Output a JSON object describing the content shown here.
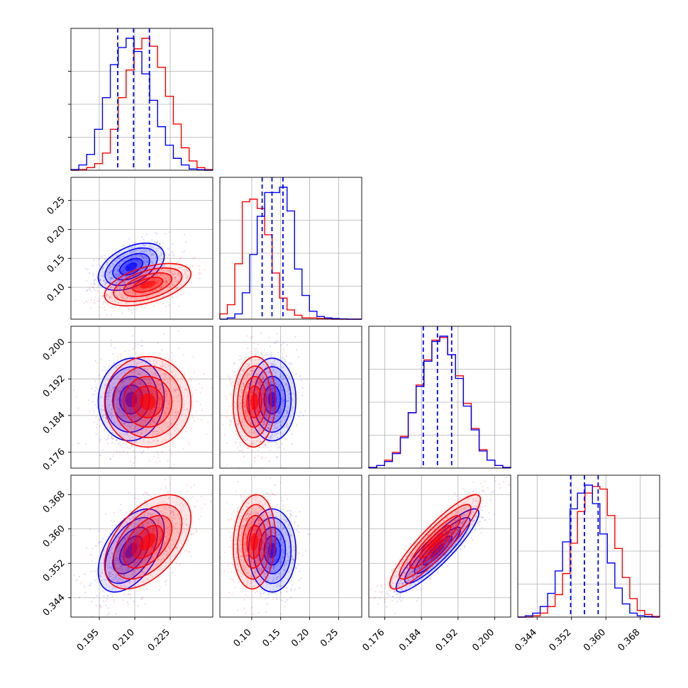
{
  "chart_data": {
    "type": "corner",
    "parameters": 4,
    "grid": true,
    "series": [
      {
        "color": "#0000ff"
      },
      {
        "color": "#ff0000"
      }
    ],
    "colors": {
      "blue": "#0000ff",
      "red": "#ff0000",
      "grid": "#b0b0b0"
    },
    "param_ranges": [
      [
        0.183,
        0.243
      ],
      [
        0.045,
        0.29
      ],
      [
        0.1725,
        0.2035
      ],
      [
        0.3395,
        0.3725
      ]
    ],
    "ticks": [
      {
        "values": [
          0.195,
          0.21,
          0.225
        ],
        "labels": [
          "0.195",
          "0.210",
          "0.225"
        ]
      },
      {
        "values": [
          0.1,
          0.15,
          0.2,
          0.25
        ],
        "labels": [
          "0.10",
          "0.15",
          "0.20",
          "0.25"
        ]
      },
      {
        "values": [
          0.176,
          0.184,
          0.192,
          0.2
        ],
        "labels": [
          "0.176",
          "0.184",
          "0.192",
          "0.200"
        ]
      },
      {
        "values": [
          0.344,
          0.352,
          0.36,
          0.368
        ],
        "labels": [
          "0.344",
          "0.352",
          "0.360",
          "0.368"
        ]
      }
    ],
    "histograms": [
      {
        "quantiles": [
          0.2028,
          0.2095,
          0.2162
        ],
        "blue": [
          0.005,
          0.04,
          0.12,
          0.31,
          0.55,
          0.8,
          0.93,
          1.0,
          0.9,
          0.73,
          0.53,
          0.33,
          0.19,
          0.09,
          0.04,
          0.01,
          0.004,
          0.0
        ],
        "red": [
          0.0,
          0.005,
          0.02,
          0.05,
          0.13,
          0.31,
          0.55,
          0.76,
          0.92,
          1.0,
          0.94,
          0.78,
          0.56,
          0.35,
          0.17,
          0.07,
          0.02,
          0.005
        ]
      },
      {
        "quantiles": [
          0.118,
          0.135,
          0.154
        ],
        "blue": [
          0.0,
          0.01,
          0.04,
          0.2,
          0.49,
          0.78,
          0.96,
          0.96,
          1.0,
          0.82,
          0.38,
          0.18,
          0.06,
          0.02,
          0.01,
          0.005,
          0.002,
          0.0,
          0.0
        ],
        "red": [
          0.04,
          0.11,
          0.42,
          0.89,
          0.91,
          0.84,
          0.64,
          0.35,
          0.16,
          0.07,
          0.03,
          0.01,
          0.01,
          0.005,
          0.002,
          0.0,
          0.0,
          0.0,
          0.0
        ]
      },
      {
        "quantiles": [
          0.1844,
          0.1875,
          0.1906
        ],
        "blue": [
          0.005,
          0.02,
          0.05,
          0.11,
          0.23,
          0.42,
          0.62,
          0.81,
          0.96,
          1.0,
          0.86,
          0.68,
          0.47,
          0.29,
          0.13,
          0.06,
          0.02,
          0.005
        ],
        "red": [
          0.005,
          0.02,
          0.06,
          0.12,
          0.24,
          0.42,
          0.63,
          0.82,
          0.97,
          0.99,
          0.86,
          0.7,
          0.49,
          0.3,
          0.14,
          0.06,
          0.02,
          0.005
        ]
      },
      {
        "quantiles": [
          0.3518,
          0.355,
          0.3582
        ],
        "blue": [
          0.0,
          0.01,
          0.03,
          0.08,
          0.18,
          0.35,
          0.57,
          0.82,
          0.94,
          1.0,
          0.86,
          0.63,
          0.41,
          0.22,
          0.1,
          0.03,
          0.01,
          0.005,
          0.0
        ],
        "red": [
          0.0,
          0.0,
          0.01,
          0.03,
          0.08,
          0.17,
          0.33,
          0.56,
          0.8,
          0.94,
          0.99,
          0.97,
          0.77,
          0.52,
          0.3,
          0.14,
          0.05,
          0.02,
          0.005
        ]
      }
    ],
    "posteriors": {
      "blue": {
        "mean": [
          0.2085,
          0.1355,
          0.1875,
          0.355
        ],
        "sd": [
          0.0065,
          0.019,
          0.0042,
          0.0045
        ]
      },
      "red": {
        "mean": [
          0.2155,
          0.1045,
          0.187,
          0.357
        ],
        "sd": [
          0.0085,
          0.017,
          0.0046,
          0.0051
        ]
      }
    },
    "correlations": [
      {
        "pair": [
          1,
          0
        ],
        "blue": 0.45,
        "red": 0.5
      },
      {
        "pair": [
          2,
          0
        ],
        "blue": 0.05,
        "red": 0.0
      },
      {
        "pair": [
          2,
          1
        ],
        "blue": 0.0,
        "red": 0.05
      },
      {
        "pair": [
          3,
          0
        ],
        "blue": 0.5,
        "red": 0.5
      },
      {
        "pair": [
          3,
          1
        ],
        "blue": 0.0,
        "red": 0.1
      },
      {
        "pair": [
          3,
          2
        ],
        "blue": 0.9,
        "red": 0.9
      }
    ]
  }
}
